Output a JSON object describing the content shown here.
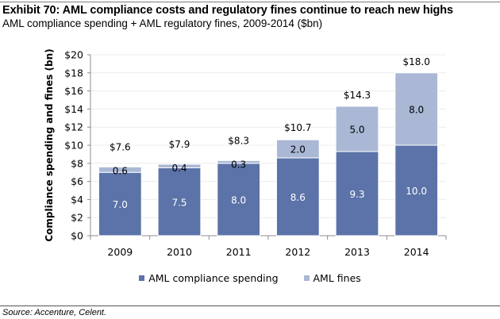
{
  "chart_data": {
    "type": "bar",
    "stacked": true,
    "title": "Exhibit 70: AML compliance costs and regulatory fines continue to reach new highs",
    "subtitle": "AML compliance spending + AML regulatory fines, 2009-2014 ($bn)",
    "xlabel": "",
    "ylabel": "Compliance spending and fines (bn)",
    "ylim": [
      0,
      20
    ],
    "yticks": [
      0,
      2,
      4,
      6,
      8,
      10,
      12,
      14,
      16,
      18,
      20
    ],
    "ytick_labels": [
      "$0",
      "$2",
      "$4",
      "$6",
      "$8",
      "$10",
      "$12",
      "$14",
      "$16",
      "$18",
      "$20"
    ],
    "grid": true,
    "categories": [
      "2009",
      "2010",
      "2011",
      "2012",
      "2013",
      "2014"
    ],
    "series": [
      {
        "name": "AML compliance spending",
        "color": "#5b73a8",
        "values": [
          7.0,
          7.5,
          8.0,
          8.6,
          9.3,
          10.0
        ],
        "labels": [
          "7.0",
          "7.5",
          "8.0",
          "8.6",
          "9.3",
          "10.0"
        ]
      },
      {
        "name": "AML fines",
        "color": "#aab8d6",
        "values": [
          0.6,
          0.4,
          0.3,
          2.0,
          5.0,
          8.0
        ],
        "labels": [
          "0.6",
          "0.4",
          "0.3",
          "2.0",
          "5.0",
          "8.0"
        ]
      }
    ],
    "totals": [
      7.6,
      7.9,
      8.3,
      10.7,
      14.3,
      18.0
    ],
    "total_labels": [
      "$7.6",
      "$7.9",
      "$8.3",
      "$10.7",
      "$14.3",
      "$18.0"
    ],
    "legend_position": "bottom"
  },
  "source": "Source: Accenture, Celent."
}
